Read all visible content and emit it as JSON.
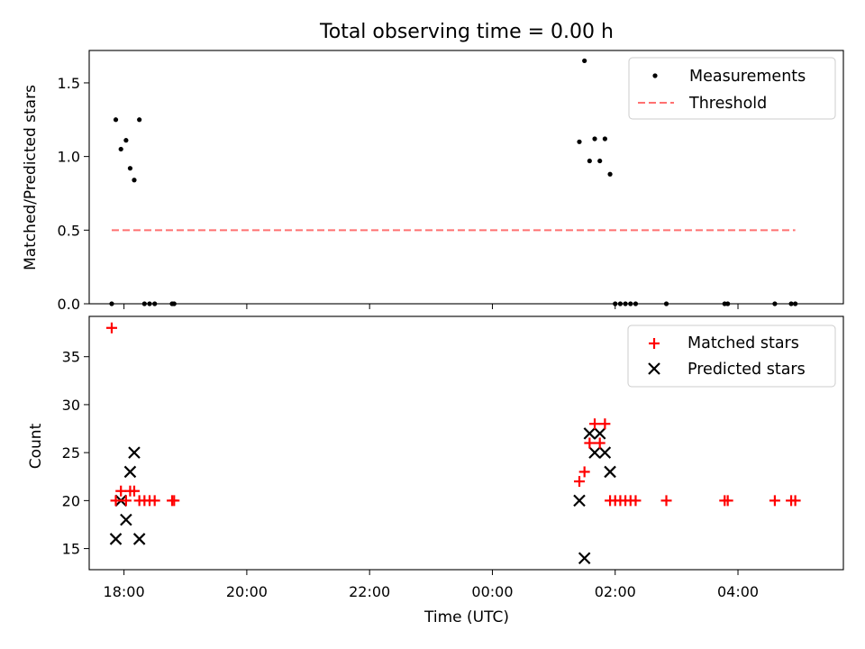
{
  "colors": {
    "measurement": "#000000",
    "threshold": "#ff7070",
    "matched": "#ff0000",
    "predicted": "#000000"
  },
  "chart_data": [
    {
      "type": "scatter",
      "title": "Total observing time = 0.00 h",
      "ylabel": "Matched/Predicted stars",
      "xlabel": "",
      "xlim": [
        "17:26",
        "05:43"
      ],
      "ylim": [
        0,
        1.72
      ],
      "yticks": [
        0.0,
        0.5,
        1.0,
        1.5
      ],
      "ytick_labels": [
        "0.0",
        "0.5",
        "1.0",
        "1.5"
      ],
      "legend_position": "top-right",
      "series": [
        {
          "name": "Measurements",
          "marker": "dot",
          "points": [
            [
              "17:48",
              0.0
            ],
            [
              "17:52",
              1.25
            ],
            [
              "17:57",
              1.05
            ],
            [
              "18:02",
              1.11
            ],
            [
              "18:06",
              0.92
            ],
            [
              "18:10",
              0.84
            ],
            [
              "18:15",
              1.25
            ],
            [
              "18:20",
              0.0
            ],
            [
              "18:25",
              0.0
            ],
            [
              "18:30",
              0.0
            ],
            [
              "18:47",
              0.0
            ],
            [
              "18:49",
              0.0
            ],
            [
              "01:25",
              1.1
            ],
            [
              "01:30",
              1.65
            ],
            [
              "01:35",
              0.97
            ],
            [
              "01:40",
              1.12
            ],
            [
              "01:45",
              0.97
            ],
            [
              "01:50",
              1.12
            ],
            [
              "01:55",
              0.88
            ],
            [
              "02:00",
              0.0
            ],
            [
              "02:05",
              0.0
            ],
            [
              "02:10",
              0.0
            ],
            [
              "02:15",
              0.0
            ],
            [
              "02:20",
              0.0
            ],
            [
              "02:50",
              0.0
            ],
            [
              "03:47",
              0.0
            ],
            [
              "03:50",
              0.0
            ],
            [
              "04:36",
              0.0
            ],
            [
              "04:52",
              0.0
            ],
            [
              "04:56",
              0.0
            ]
          ]
        },
        {
          "name": "Threshold",
          "marker": "dashed-line",
          "points": [
            [
              "17:48",
              0.5
            ],
            [
              "04:56",
              0.5
            ]
          ]
        }
      ]
    },
    {
      "type": "scatter",
      "title": "",
      "ylabel": "Count",
      "xlabel": "Time (UTC)",
      "xlim": [
        "17:26",
        "05:43"
      ],
      "ylim": [
        12.8,
        39.2
      ],
      "yticks": [
        15,
        20,
        25,
        30,
        35
      ],
      "ytick_labels": [
        "15",
        "20",
        "25",
        "30",
        "35"
      ],
      "xticks": [
        "18:00",
        "20:00",
        "22:00",
        "00:00",
        "02:00",
        "04:00"
      ],
      "legend_position": "top-right",
      "series": [
        {
          "name": "Matched stars",
          "marker": "plus",
          "points": [
            [
              "17:48",
              38
            ],
            [
              "17:52",
              20
            ],
            [
              "17:57",
              21
            ],
            [
              "18:02",
              20
            ],
            [
              "18:06",
              21
            ],
            [
              "18:10",
              21
            ],
            [
              "18:15",
              20
            ],
            [
              "18:20",
              20
            ],
            [
              "18:25",
              20
            ],
            [
              "18:30",
              20
            ],
            [
              "18:47",
              20
            ],
            [
              "18:49",
              20
            ],
            [
              "01:25",
              22
            ],
            [
              "01:30",
              23
            ],
            [
              "01:35",
              26
            ],
            [
              "01:40",
              28
            ],
            [
              "01:45",
              26
            ],
            [
              "01:50",
              28
            ],
            [
              "01:55",
              20
            ],
            [
              "02:00",
              20
            ],
            [
              "02:05",
              20
            ],
            [
              "02:10",
              20
            ],
            [
              "02:15",
              20
            ],
            [
              "02:20",
              20
            ],
            [
              "02:50",
              20
            ],
            [
              "03:47",
              20
            ],
            [
              "03:50",
              20
            ],
            [
              "04:36",
              20
            ],
            [
              "04:52",
              20
            ],
            [
              "04:56",
              20
            ]
          ]
        },
        {
          "name": "Predicted stars",
          "marker": "x",
          "points": [
            [
              "17:52",
              16
            ],
            [
              "17:57",
              20
            ],
            [
              "18:02",
              18
            ],
            [
              "18:06",
              23
            ],
            [
              "18:10",
              25
            ],
            [
              "18:15",
              16
            ],
            [
              "01:25",
              20
            ],
            [
              "01:30",
              14
            ],
            [
              "01:35",
              27
            ],
            [
              "01:40",
              25
            ],
            [
              "01:45",
              27
            ],
            [
              "01:50",
              25
            ],
            [
              "01:55",
              23
            ]
          ]
        }
      ]
    }
  ]
}
